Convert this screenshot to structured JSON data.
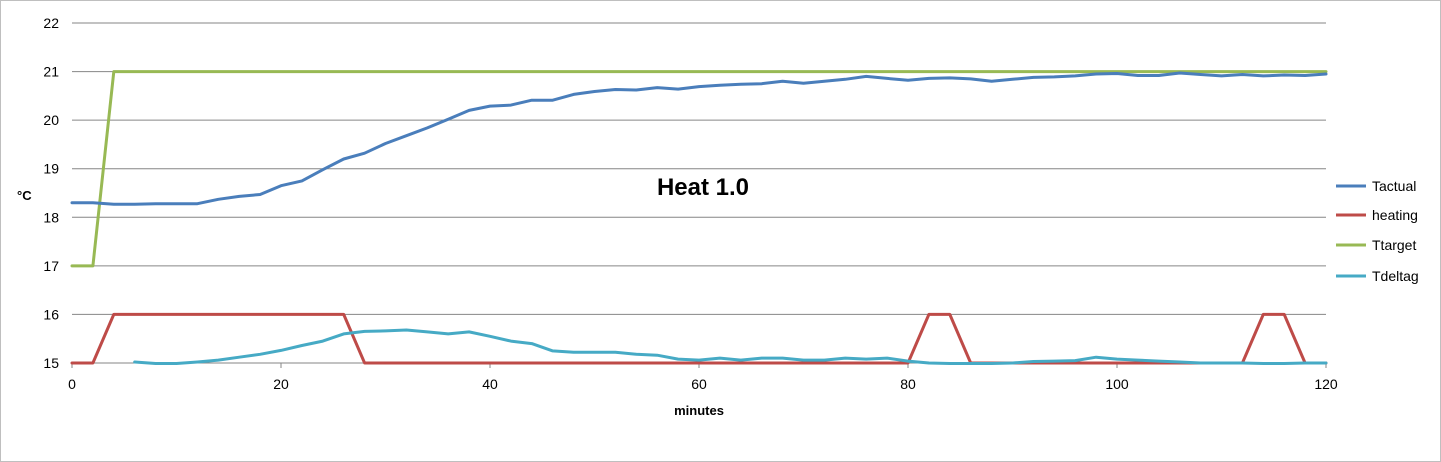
{
  "chart_data": {
    "type": "line",
    "title": "",
    "annotation": "Heat 1.0",
    "xlabel": "minutes",
    "ylabel": "°C",
    "xlim": [
      0,
      120
    ],
    "ylim": [
      15,
      22
    ],
    "x_ticks": [
      "0",
      "20",
      "40",
      "60",
      "80",
      "100",
      "120"
    ],
    "y_ticks": [
      "15",
      "16",
      "17",
      "18",
      "19",
      "20",
      "21",
      "22"
    ],
    "grid": "horizontal",
    "legend_position": "right",
    "series": [
      {
        "name": "Tactual",
        "color": "#4a7ebb",
        "x": [
          0,
          2,
          4,
          6,
          8,
          10,
          12,
          14,
          16,
          18,
          20,
          22,
          24,
          26,
          28,
          30,
          32,
          34,
          36,
          38,
          40,
          42,
          44,
          46,
          48,
          50,
          52,
          54,
          56,
          58,
          60,
          62,
          64,
          66,
          68,
          70,
          72,
          74,
          76,
          78,
          80,
          82,
          84,
          86,
          88,
          90,
          92,
          94,
          96,
          98,
          100,
          102,
          104,
          106,
          108,
          110,
          112,
          114,
          116,
          118,
          120
        ],
        "values": [
          18.3,
          18.3,
          18.27,
          18.27,
          18.28,
          18.28,
          18.28,
          18.37,
          18.43,
          18.47,
          18.65,
          18.75,
          18.98,
          19.2,
          19.32,
          19.52,
          19.68,
          19.84,
          20.02,
          20.2,
          20.29,
          20.31,
          20.41,
          20.41,
          20.53,
          20.59,
          20.63,
          20.62,
          20.67,
          20.64,
          20.69,
          20.72,
          20.74,
          20.75,
          20.8,
          20.76,
          20.8,
          20.84,
          20.9,
          20.86,
          20.82,
          20.86,
          20.87,
          20.85,
          20.8,
          20.84,
          20.88,
          20.89,
          20.91,
          20.95,
          20.96,
          20.92,
          20.92,
          20.97,
          20.94,
          20.91,
          20.94,
          20.91,
          20.93,
          20.92,
          20.95
        ]
      },
      {
        "name": "heating",
        "color": "#be4b48",
        "x": [
          0,
          2,
          4,
          6,
          8,
          10,
          12,
          14,
          16,
          18,
          20,
          22,
          24,
          26,
          28,
          30,
          40,
          50,
          60,
          70,
          80,
          82,
          84,
          86,
          88,
          90,
          100,
          110,
          112,
          114,
          116,
          118,
          120
        ],
        "values": [
          15,
          15,
          16,
          16,
          16,
          16,
          16,
          16,
          16,
          16,
          16,
          16,
          16,
          16,
          15,
          15,
          15,
          15,
          15,
          15,
          15,
          16,
          16,
          15,
          15,
          15,
          15,
          15,
          15,
          16,
          16,
          15,
          15
        ]
      },
      {
        "name": "Ttarget",
        "color": "#98b954",
        "x": [
          0,
          2,
          4,
          10,
          20,
          40,
          60,
          80,
          100,
          120
        ],
        "values": [
          17,
          17,
          21,
          21,
          21,
          21,
          21,
          21,
          21,
          21
        ]
      },
      {
        "name": "Tdeltag",
        "color": "#46aac5",
        "x": [
          0,
          2,
          4,
          6,
          8,
          10,
          12,
          14,
          16,
          18,
          20,
          22,
          24,
          26,
          28,
          30,
          32,
          34,
          36,
          38,
          40,
          42,
          44,
          46,
          48,
          50,
          52,
          54,
          56,
          58,
          60,
          62,
          64,
          66,
          68,
          70,
          72,
          74,
          76,
          78,
          80,
          82,
          84,
          86,
          88,
          90,
          92,
          94,
          96,
          98,
          100,
          102,
          104,
          106,
          108,
          110,
          112,
          114,
          116,
          118,
          120
        ],
        "values": [
          null,
          null,
          null,
          15.02,
          14.99,
          14.99,
          15.02,
          15.06,
          15.12,
          15.18,
          15.26,
          15.36,
          15.45,
          15.6,
          15.65,
          15.66,
          15.68,
          15.64,
          15.6,
          15.64,
          15.55,
          15.45,
          15.4,
          15.25,
          15.22,
          15.22,
          15.22,
          15.18,
          15.16,
          15.08,
          15.06,
          15.1,
          15.06,
          15.1,
          15.1,
          15.06,
          15.06,
          15.1,
          15.08,
          15.1,
          15.04,
          15.0,
          14.99,
          14.99,
          14.99,
          15.0,
          15.03,
          15.04,
          15.05,
          15.12,
          15.08,
          15.06,
          15.04,
          15.02,
          15.0,
          15.0,
          15.0,
          14.99,
          14.99,
          15.0,
          15.0
        ]
      }
    ]
  }
}
